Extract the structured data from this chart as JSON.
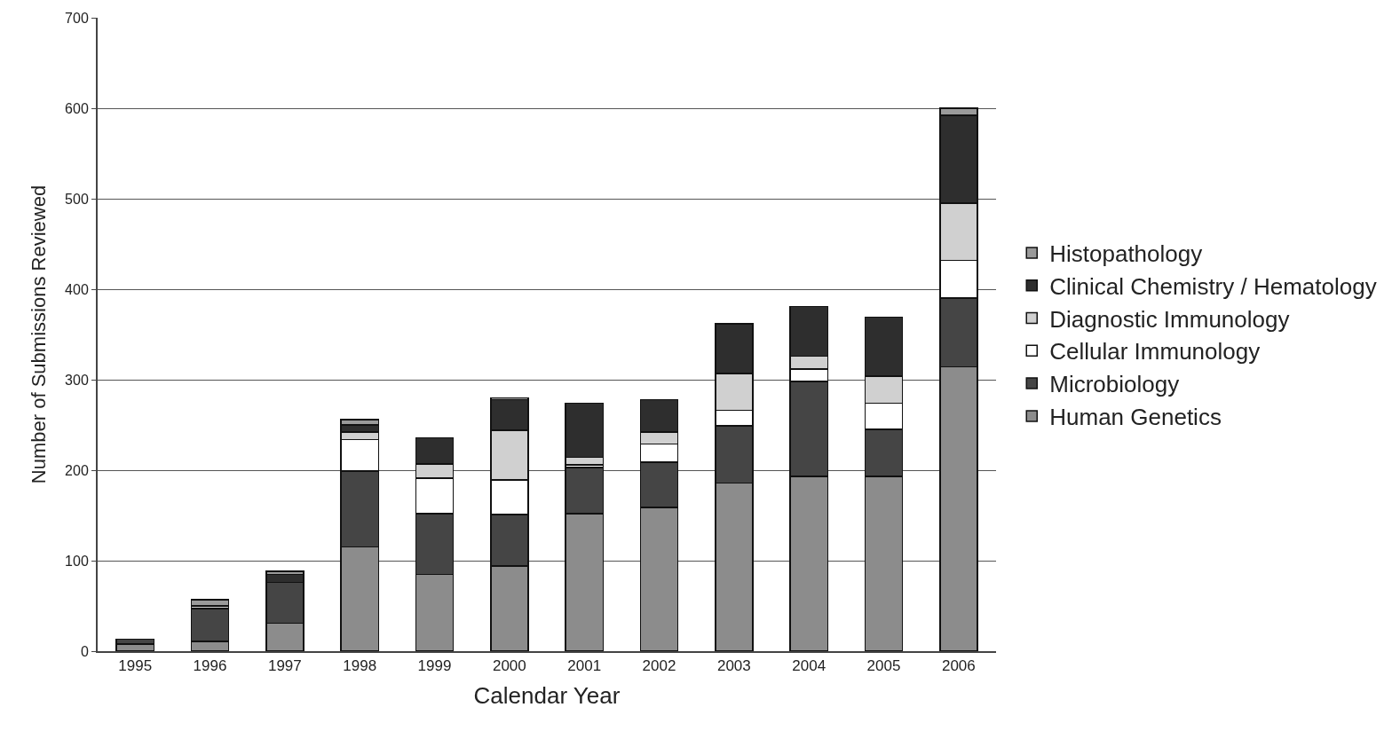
{
  "chart_data": {
    "type": "bar",
    "stacked": true,
    "xlabel": "Calendar Year",
    "ylabel": "Number of Submissions Reviewed",
    "categories": [
      "1995",
      "1996",
      "1997",
      "1998",
      "1999",
      "2000",
      "2001",
      "2002",
      "2003",
      "2004",
      "2005",
      "2006"
    ],
    "series": [
      {
        "name": "Human Genetics",
        "color": "#8c8c8c",
        "values": [
          8,
          11,
          31,
          115,
          85,
          94,
          152,
          159,
          186,
          193,
          193,
          314
        ]
      },
      {
        "name": "Microbiology",
        "color": "#454545",
        "values": [
          5,
          36,
          45,
          84,
          67,
          57,
          51,
          50,
          63,
          105,
          52,
          76
        ]
      },
      {
        "name": "Cellular Immunology",
        "color": "#ffffff",
        "values": [
          null,
          null,
          null,
          35,
          39,
          38,
          3,
          20,
          17,
          14,
          29,
          42
        ]
      },
      {
        "name": "Diagnostic Immunology",
        "color": "#d0d0d0",
        "values": [
          null,
          3,
          null,
          8,
          16,
          55,
          8,
          13,
          41,
          14,
          30,
          63
        ]
      },
      {
        "name": "Clinical Chemistry / Hematology",
        "color": "#2e2e2e",
        "values": [
          null,
          null,
          9,
          8,
          29,
          34,
          60,
          36,
          55,
          55,
          65,
          97
        ]
      },
      {
        "name": "Histopathology",
        "color": "#9a9a9a",
        "values": [
          null,
          7,
          3,
          6,
          null,
          2,
          null,
          null,
          null,
          null,
          null,
          8
        ]
      }
    ],
    "ylim": [
      0,
      700
    ],
    "yticks": [
      0,
      100,
      200,
      300,
      400,
      500,
      600,
      700
    ],
    "grid": "y",
    "legend": "right"
  }
}
